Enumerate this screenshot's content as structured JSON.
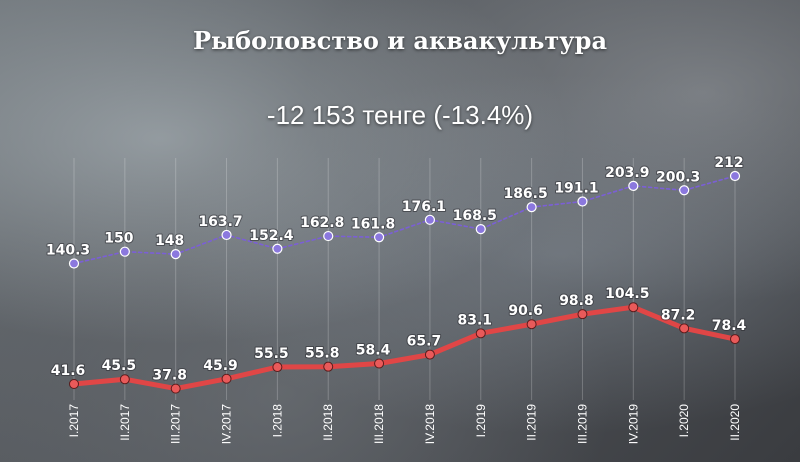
{
  "title": "Рыболовство и аквакультура",
  "subtitle": "-12 153 тенге (-13.4%)",
  "chart_data": {
    "type": "line",
    "title": "Рыболовство и аквакультура",
    "subtitle": "-12 153 тенге (-13.4%)",
    "xlabel": "",
    "ylabel": "",
    "ylim": [
      30,
      220
    ],
    "grid": "vertical",
    "categories": [
      "I.2017",
      "II.2017",
      "III.2017",
      "IV.2017",
      "I.2018",
      "II.2018",
      "III.2018",
      "IV.2018",
      "I.2019",
      "II.2019",
      "III.2019",
      "IV.2019",
      "I.2020",
      "II.2020"
    ],
    "series": [
      {
        "color": "#7b5fd6",
        "style": "dashed",
        "values": [
          140.3,
          150,
          148,
          163.7,
          152.4,
          162.8,
          161.8,
          176.1,
          168.5,
          186.5,
          191.1,
          203.9,
          200.3,
          212
        ],
        "labels": [
          "140.3",
          "150",
          "148",
          "163.7",
          "152.4",
          "162.8",
          "161.8",
          "176.1",
          "168.5",
          "186.5",
          "191.1",
          "203.9",
          "200.3",
          "212"
        ]
      },
      {
        "color": "#e04646",
        "style": "solid",
        "values": [
          41.6,
          45.5,
          37.8,
          45.9,
          55.5,
          55.8,
          58.4,
          65.7,
          83.1,
          90.6,
          98.8,
          104.5,
          87.2,
          78.4
        ],
        "labels": [
          "41.6",
          "45.5",
          "37.8",
          "45.9",
          "55.5",
          "55.8",
          "58.4",
          "65.7",
          "83.1",
          "90.6",
          "98.8",
          "104.5",
          "87.2",
          "78.4"
        ]
      }
    ]
  }
}
